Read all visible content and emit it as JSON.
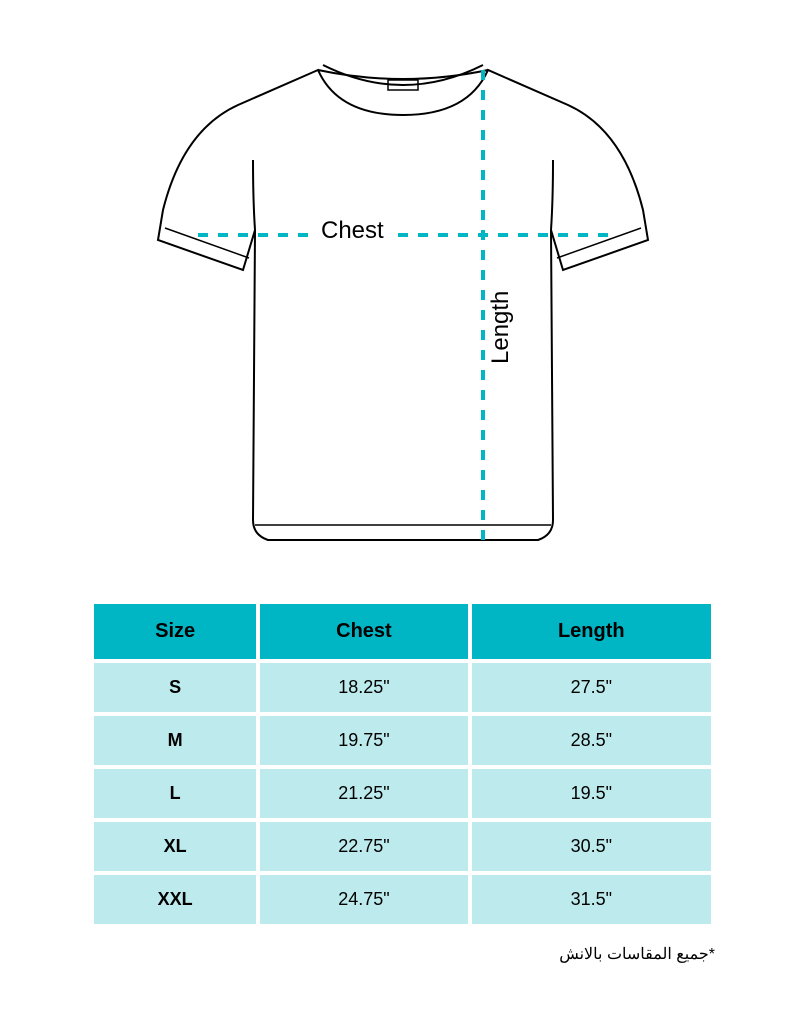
{
  "diagram": {
    "chest_label": "Chest",
    "length_label": "Length",
    "outline_color": "#000000",
    "outline_width": 2,
    "measure_line_color": "#00b5c4",
    "measure_line_width": 4,
    "measure_line_dash": "10,10",
    "background": "#ffffff",
    "label_fontsize": 24,
    "label_color": "#000000"
  },
  "table": {
    "columns": [
      "Size",
      "Chest",
      "Length"
    ],
    "rows": [
      [
        "S",
        "18.25\"",
        "27.5\""
      ],
      [
        "M",
        "19.75\"",
        "28.5\""
      ],
      [
        "L",
        "21.25\"",
        "19.5\""
      ],
      [
        "XL",
        "22.75\"",
        "30.5\""
      ],
      [
        "XXL",
        "24.75\"",
        "31.5\""
      ]
    ],
    "header_bg": "#00b5c4",
    "header_color": "#000000",
    "header_fontsize": 20,
    "row_bg": "#bdebed",
    "row_color": "#000000",
    "row_fontsize": 18,
    "border_spacing": 4
  },
  "footnote": {
    "text": "*جميع المقاسات بالانش",
    "fontsize": 16,
    "color": "#000000"
  }
}
